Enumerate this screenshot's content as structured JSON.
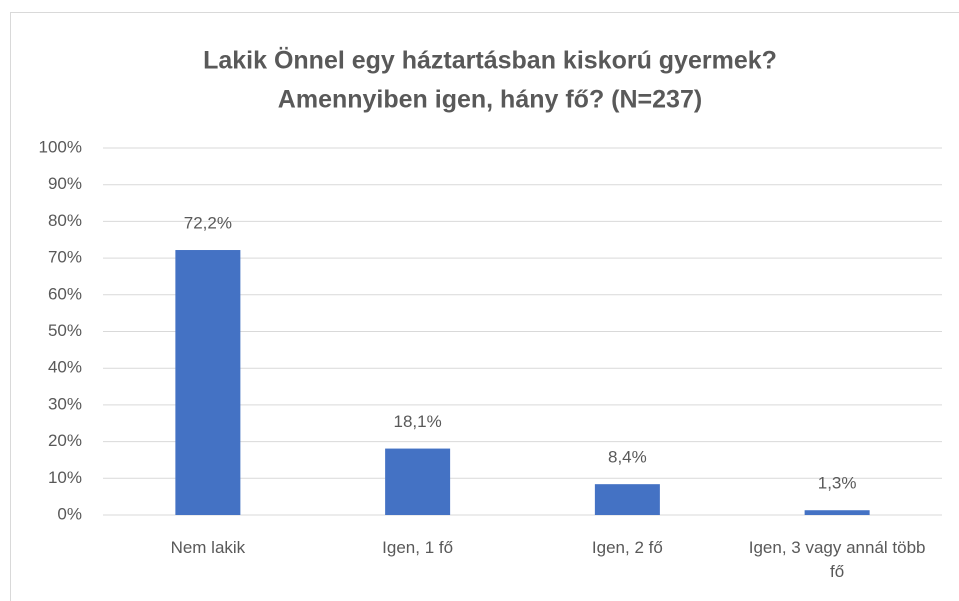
{
  "chart_data": {
    "type": "bar",
    "title": [
      "Lakik Önnel egy háztartásban kiskorú gyermek?",
      "Amennyiben igen, hány fő? (N=237)"
    ],
    "categories": [
      "Nem lakik",
      "Igen, 1 fő",
      "Igen, 2 fő",
      "Igen, 3 vagy annál több fő"
    ],
    "values": [
      72.2,
      18.1,
      8.4,
      1.3
    ],
    "value_labels": [
      "72,2%",
      "18,1%",
      "8,4%",
      "1,3%"
    ],
    "color": "#4472c4",
    "ylim": [
      0,
      100
    ],
    "yticks": [
      {
        "value": 0,
        "label": "0%"
      },
      {
        "value": 10,
        "label": "10%"
      },
      {
        "value": 20,
        "label": "20%"
      },
      {
        "value": 30,
        "label": "30%"
      },
      {
        "value": 40,
        "label": "40%"
      },
      {
        "value": 50,
        "label": "50%"
      },
      {
        "value": 60,
        "label": "60%"
      },
      {
        "value": 70,
        "label": "70%"
      },
      {
        "value": 80,
        "label": "80%"
      },
      {
        "value": 90,
        "label": "90%"
      },
      {
        "value": 100,
        "label": "100%"
      }
    ],
    "grid": true
  }
}
